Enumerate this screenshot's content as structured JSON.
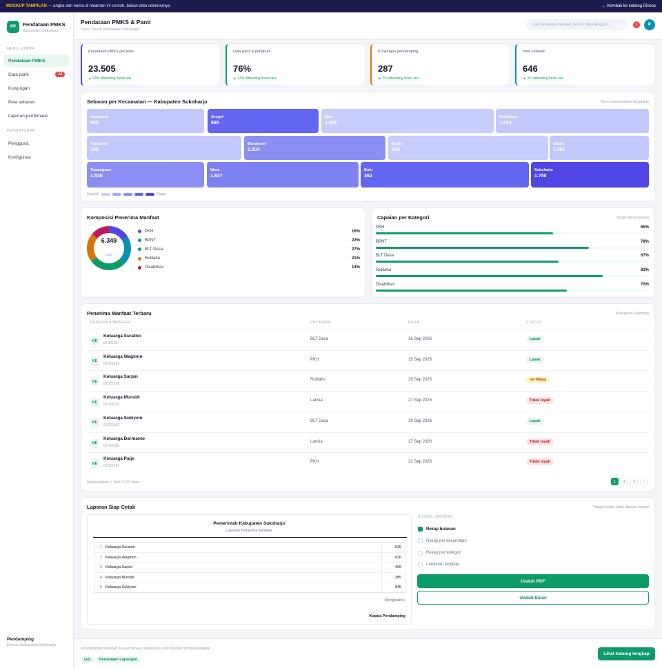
{
  "banner": {
    "tag": "MOCKUP TAMPILAN",
    "text": "— angka dan nama di halaman ini contoh, bukan data sebenarnya",
    "back": "← Kembali ke katalog Dinsos"
  },
  "brand": {
    "logo": "PP",
    "title": "Pendataan PMKS",
    "subtitle": "Kabupaten Sukoharjo"
  },
  "nav": {
    "section_main": "MENU UTAMA",
    "items": [
      {
        "label": "Pendataan PMKS"
      },
      {
        "label": "Data panti",
        "badge": "14"
      },
      {
        "label": "Kunjungan"
      },
      {
        "label": "Peta sebaran"
      },
      {
        "label": "Laporan pembinaan"
      }
    ],
    "section_settings": "PENGATURAN",
    "settings": [
      {
        "label": "Pengguna"
      },
      {
        "label": "Konfigurasi"
      }
    ]
  },
  "user": {
    "role": "Pendamping",
    "org": "Dinsos Kabupaten Sukoharjo",
    "initial": "P"
  },
  "header": {
    "title": "Pendataan PMKS & Panti",
    "subtitle": "Dinas Sosial Kabupaten Sukoharjo",
    "search_placeholder": "Cari penerima manfaat, nomor, atau tanggal...",
    "notif_count": "2"
  },
  "kpis": [
    {
      "label": "Pendataan PMKS per jenis",
      "value": "23.505",
      "delta": "▲ 14% dibanding bulan lalu",
      "accent": "#4f46e5"
    },
    {
      "label": "Data panti & penghuni",
      "value": "76%",
      "delta": "▲ 13% dibanding bulan lalu",
      "accent": "#0e9b6a"
    },
    {
      "label": "Kunjungan pendamping",
      "value": "287",
      "delta": "▲ 7% dibanding bulan lalu",
      "accent": "#d97706"
    },
    {
      "label": "Peta sebaran",
      "value": "646",
      "delta": "▲ 3% dibanding bulan lalu",
      "accent": "#0891b2"
    }
  ],
  "treemap": {
    "title": "Sebaran per Kecamatan — Kabupaten Sukoharjo",
    "note": "Warna menunjukkan kepadatan",
    "tiles": [
      {
        "name": "Kartasura",
        "value": "500",
        "color": "#c3c8fb"
      },
      {
        "name": "Grogol",
        "value": "665",
        "color": "#6366f1"
      },
      {
        "name": "Baki",
        "value": "1.416",
        "color": "#c7cdfc"
      },
      {
        "name": "Mojolaban",
        "value": "1.014",
        "color": "#c3c8fb"
      },
      {
        "name": "Polokarto",
        "value": "164",
        "color": "#c3c8fb"
      },
      {
        "name": "Bendosari",
        "value": "1.204",
        "color": "#8b8ff3"
      },
      {
        "name": "Nguter",
        "value": "508",
        "color": "#c7cdfc"
      },
      {
        "name": "Gatak",
        "value": "1.001",
        "color": "#c3c8fb"
      },
      {
        "name": "Tawangsari",
        "value": "1.530",
        "color": "#8b8ff3"
      },
      {
        "name": "Weru",
        "value": "1.627",
        "color": "#7d81f2"
      },
      {
        "name": "Bulu",
        "value": "362",
        "color": "#6366f1"
      },
      {
        "name": "Sukoharjo",
        "value": "1.750",
        "color": "#4f46e5"
      }
    ],
    "scale_low": "Rendah",
    "scale_high": "Tinggi",
    "scale_colors": [
      "#c7cdfc",
      "#a5aaf7",
      "#8b8ff3",
      "#6366f1",
      "#4f46e5"
    ]
  },
  "composition": {
    "title": "Komposisi Penerima Manfaat",
    "total": "6.349",
    "total_label": "total",
    "segments": [
      {
        "label": "PKH",
        "pct": "16%",
        "value": 16,
        "color": "#4f46e5"
      },
      {
        "label": "BPNT",
        "pct": "22%",
        "value": 22,
        "color": "#0891b2"
      },
      {
        "label": "BLT Desa",
        "pct": "27%",
        "value": 27,
        "color": "#0e9b6a"
      },
      {
        "label": "Rutilahu",
        "pct": "21%",
        "value": 21,
        "color": "#d97706"
      },
      {
        "label": "Disabilitas",
        "pct": "14%",
        "value": 14,
        "color": "#be185d"
      }
    ]
  },
  "achievement": {
    "title": "Capaian per Kategori",
    "note": "Target tahun berjalan",
    "items": [
      {
        "label": "PKH",
        "pct": "65%",
        "value": 65
      },
      {
        "label": "BPNT",
        "pct": "78%",
        "value": 78
      },
      {
        "label": "BLT Desa",
        "pct": "67%",
        "value": 67
      },
      {
        "label": "Rutilahu",
        "pct": "83%",
        "value": 83
      },
      {
        "label": "Disabilitas",
        "pct": "70%",
        "value": 70
      }
    ]
  },
  "recipients": {
    "title": "Penerima Manfaat Terbaru",
    "note": "Kabupaten Sukoharjo",
    "columns": [
      "PENERIMA MANFAAT",
      "PROGRAM",
      "DESA",
      "STATUS"
    ],
    "rows": [
      {
        "initials": "KE",
        "name": "Keluarga Suratno",
        "id": "ID 001204",
        "program": "BLT Desa",
        "date": "16 Sep 2026",
        "status": "Layak",
        "kind": "ok"
      },
      {
        "initials": "KE",
        "name": "Keluarga Wagimin",
        "id": "ID 001241",
        "program": "PKH",
        "date": "15 Sep 2026",
        "status": "Layak",
        "kind": "ok"
      },
      {
        "initials": "KE",
        "name": "Keluarga Sarpin",
        "id": "ID 001278",
        "program": "Rutilahu",
        "date": "26 Sep 2026",
        "status": "Verifikasi",
        "kind": "warn"
      },
      {
        "initials": "KE",
        "name": "Keluarga Mursidi",
        "id": "ID 001315",
        "program": "Lansia",
        "date": "27 Sep 2026",
        "status": "Tidak layak",
        "kind": "bad"
      },
      {
        "initials": "KE",
        "name": "Keluarga Sukiyem",
        "id": "ID 001352",
        "program": "BLT Desa",
        "date": "19 Sep 2026",
        "status": "Layak",
        "kind": "ok"
      },
      {
        "initials": "KE",
        "name": "Keluarga Darmanto",
        "id": "ID 001389",
        "program": "Lansia",
        "date": "17 Sep 2026",
        "status": "Tidak layak",
        "kind": "bad"
      },
      {
        "initials": "KE",
        "name": "Keluarga Paijo",
        "id": "ID 001426",
        "program": "PKH",
        "date": "22 Sep 2026",
        "status": "Tidak layak",
        "kind": "bad"
      }
    ],
    "footer": "Menampilkan 7 dari 7.219 data",
    "pages": [
      "1",
      "2",
      "3",
      "›"
    ]
  },
  "report": {
    "title": "Laporan Siap Cetak",
    "note": "Tinggal unduh, tidak disusun manual",
    "doc_title": "Pemerintah Kabupaten Sukoharjo",
    "doc_subtitle": "Laporan Penerima Manfaat",
    "doc_rows": [
      {
        "no": "1",
        "name": "Keluarga Suratno",
        "value": "639"
      },
      {
        "no": "2",
        "name": "Keluarga Wagimin",
        "value": "626"
      },
      {
        "no": "3",
        "name": "Keluarga Sarpin",
        "value": "499"
      },
      {
        "no": "4",
        "name": "Keluarga Mursidi",
        "value": "385"
      },
      {
        "no": "5",
        "name": "Keluarga Sukiyem",
        "value": "845"
      }
    ],
    "doc_know": "Mengetahui,",
    "doc_sign": "Kepala Pendamping",
    "options_title": "SUSUN LAPORAN",
    "options": [
      {
        "label": "Rekap bulanan",
        "checked": true
      },
      {
        "label": "Rekap per kecamatan",
        "checked": false
      },
      {
        "label": "Rekap per kategori",
        "checked": false
      },
      {
        "label": "Lampiran lengkap",
        "checked": false
      }
    ],
    "pdf": "Unduh PDF",
    "excel": "Unduh Excel"
  },
  "footer": {
    "text": "Pendamping masalah kesejahteraan sosial dan panti asuhan terdata lengkap.",
    "chips": [
      "GIS",
      "Pendataan Lapangan"
    ],
    "button": "Lihat katalog lengkap"
  }
}
